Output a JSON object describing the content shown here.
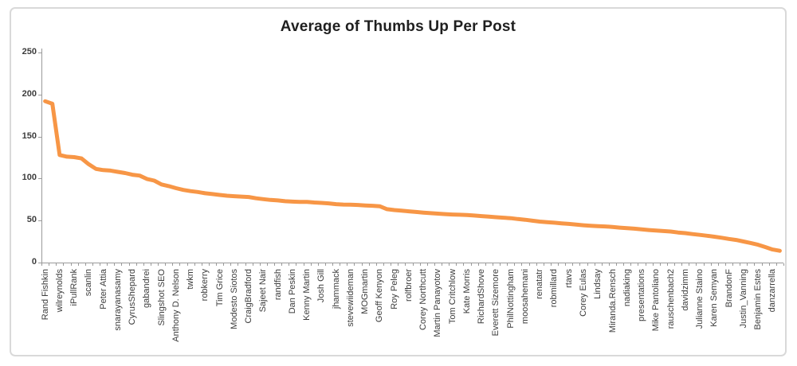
{
  "page": {
    "background": "#FFFFFF"
  },
  "style": {
    "frame_border_color": "#D9D9D9",
    "axis_color": "#9A9A9A",
    "tick_color": "#9A9A9A",
    "x_label_color": "#3C3C3C",
    "y_label_color": "#3C3C3C",
    "title_color": "#1F1F1F"
  },
  "chart_data": {
    "type": "line",
    "title": "Average of Thumbs Up Per Post",
    "xlabel": "",
    "ylabel": "",
    "ylim": [
      0,
      250
    ],
    "yticks": [
      0,
      50,
      100,
      150,
      200,
      250
    ],
    "grid": false,
    "legend": "none",
    "line_color": "#F79646",
    "line_width": 5,
    "x_label_rotation": 90,
    "points_per_label": 2,
    "categories": [
      "Rand Fishkin",
      "wilreynolds",
      "iPullRank",
      "scanlin",
      "Peter Attia",
      "snarayanasamy",
      "CyrusShepard",
      "gabandrei",
      "Slingshot SEO",
      "Anthony D. Nelson",
      "twkm",
      "robkerry",
      "Tim Grice",
      "Modesto Siotos",
      "CraigBradford",
      "Sajeet Nair",
      "randfish",
      "Dan Peskin",
      "Kenny Martin",
      "Josh Gill",
      "jhammack",
      "stevewiideman",
      "MOGmartin",
      "Geoff Kenyon",
      "Roy Peleg",
      "rolfbroer",
      "Corey Northcutt",
      "Martin Panayotov",
      "Tom Critchlow",
      "Kate Morris",
      "RichardShove",
      "Everett Sizemore",
      "PhilNottingham",
      "moosahemani",
      "renatatr",
      "robmillard",
      "rtavs",
      "Corey Eulas",
      "Lindsay",
      "Miranda.Rensch",
      "nadiaking",
      "presentations",
      "Mike Pantoliano",
      "rauschenbach2",
      "davidzimm",
      "Julianne Staino",
      "Karen Semyan",
      "BrandonF",
      "Justin_Vanning",
      "Benjamin Estes",
      "danzarrella"
    ],
    "series": [
      {
        "name": "Average of Thumbs Up Per Post",
        "values": [
          192,
          189,
          128,
          126,
          125.5,
          124,
          117,
          111.5,
          110,
          109.5,
          108,
          106.5,
          104.5,
          103.5,
          99.5,
          97.5,
          93,
          91,
          88.5,
          86.5,
          85,
          84,
          82.5,
          81.5,
          80.5,
          79.5,
          79,
          78.5,
          78,
          76.5,
          75.5,
          74.5,
          74,
          73,
          72.5,
          72.3,
          72.3,
          71.5,
          71,
          70.5,
          69.5,
          69,
          68.8,
          68.6,
          68,
          67.6,
          67,
          63.5,
          62.5,
          61.7,
          61,
          60.2,
          59.5,
          58.8,
          58.2,
          57.7,
          57.2,
          56.9,
          56.6,
          56,
          55.3,
          54.7,
          54,
          53.4,
          52.8,
          51.8,
          50.9,
          49.8,
          48.8,
          48,
          47.4,
          46.7,
          46,
          45.2,
          44.4,
          43.8,
          43.4,
          43,
          42.3,
          41.6,
          40.9,
          40.3,
          39.5,
          38.7,
          38.1,
          37.5,
          36.9,
          35.8,
          35,
          33.9,
          33,
          31.9,
          30.8,
          29.5,
          28.1,
          26.9,
          25.1,
          23.3,
          21.2,
          18.5,
          15.5,
          14
        ]
      }
    ]
  }
}
